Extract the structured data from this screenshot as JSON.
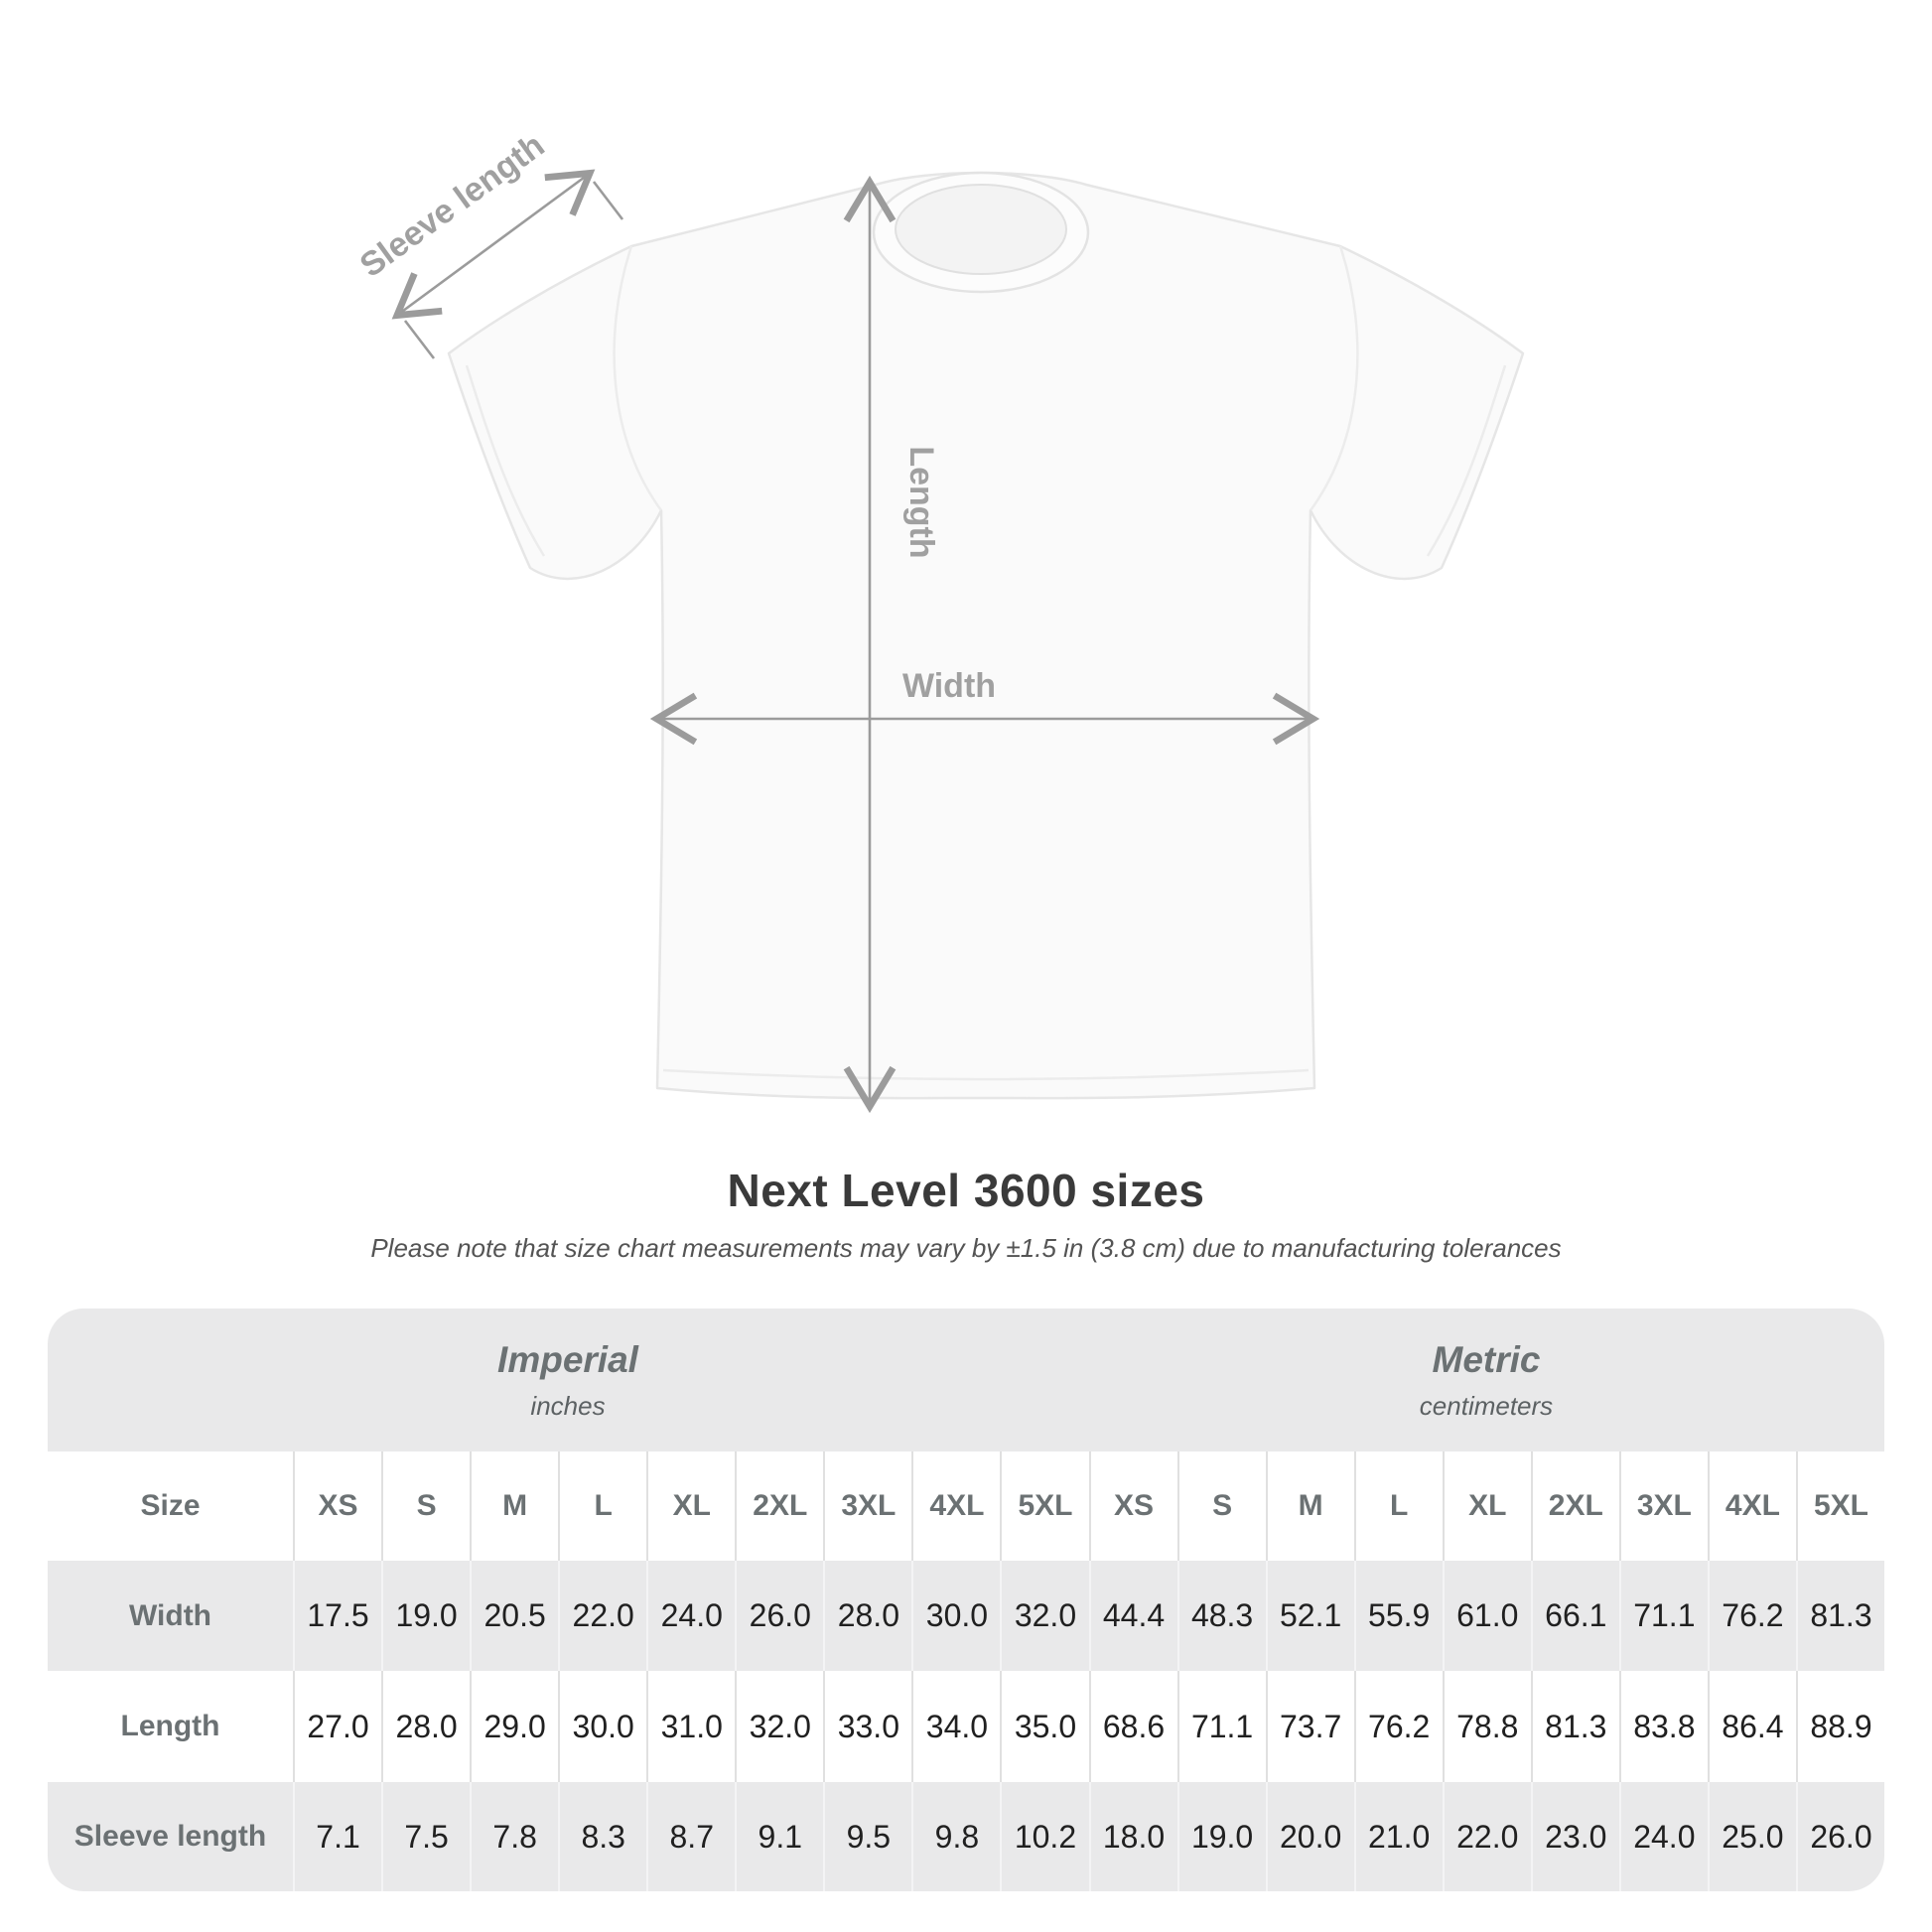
{
  "diagram": {
    "sleeve_label": "Sleeve length",
    "length_label": "Length",
    "width_label": "Width",
    "annotation_color": "#9b9b9b",
    "shirt_fill": "#fafafa"
  },
  "chart_data": {
    "type": "table",
    "title": "Next Level 3600 sizes",
    "subtitle": "Please note that size chart measurements may vary by ±1.5 in (3.8 cm) due to manufacturing tolerances",
    "row_header": "Size",
    "column_groups": [
      {
        "label": "Imperial",
        "unit": "inches",
        "sizes": [
          "XS",
          "S",
          "M",
          "L",
          "XL",
          "2XL",
          "3XL",
          "4XL",
          "5XL"
        ]
      },
      {
        "label": "Metric",
        "unit": "centimeters",
        "sizes": [
          "XS",
          "S",
          "M",
          "L",
          "XL",
          "2XL",
          "3XL",
          "4XL",
          "5XL"
        ]
      }
    ],
    "rows": [
      {
        "label": "Width",
        "imperial": [
          "17.5",
          "19.0",
          "20.5",
          "22.0",
          "24.0",
          "26.0",
          "28.0",
          "30.0",
          "32.0"
        ],
        "metric": [
          "44.4",
          "48.3",
          "52.1",
          "55.9",
          "61.0",
          "66.1",
          "71.1",
          "76.2",
          "81.3"
        ]
      },
      {
        "label": "Length",
        "imperial": [
          "27.0",
          "28.0",
          "29.0",
          "30.0",
          "31.0",
          "32.0",
          "33.0",
          "34.0",
          "35.0"
        ],
        "metric": [
          "68.6",
          "71.1",
          "73.7",
          "76.2",
          "78.8",
          "81.3",
          "83.8",
          "86.4",
          "88.9"
        ]
      },
      {
        "label": "Sleeve length",
        "imperial": [
          "7.1",
          "7.5",
          "7.8",
          "8.3",
          "8.7",
          "9.1",
          "9.5",
          "9.8",
          "10.2"
        ],
        "metric": [
          "18.0",
          "19.0",
          "20.0",
          "21.0",
          "22.0",
          "23.0",
          "24.0",
          "25.0",
          "26.0"
        ]
      }
    ],
    "layout": {
      "zebra_stripes": true,
      "header_band_color": "#e9e9ea",
      "value_color": "#202020",
      "label_color": "#6b7173"
    }
  }
}
